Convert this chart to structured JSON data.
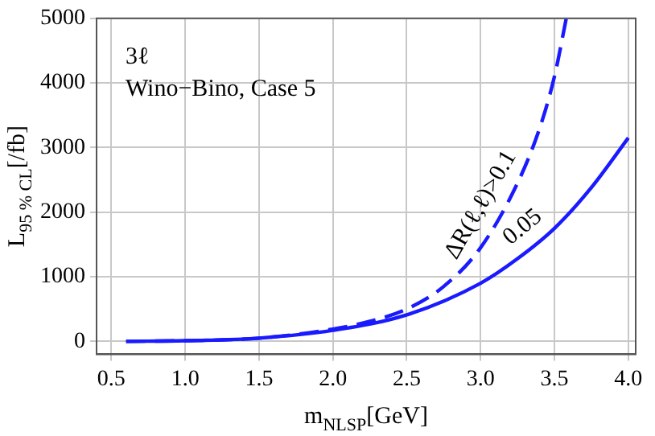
{
  "chart_data": {
    "type": "line",
    "xlabel": "m$_{NLSP}$[GeV]",
    "ylabel": "L$_{95 % CL}$[/fb]",
    "annotations": [
      "3ℓ",
      "Wino−Bino, Case 5"
    ],
    "xlim": [
      0.4,
      4.05
    ],
    "xticks": [
      {
        "value": 0.5,
        "label": "0.5"
      },
      {
        "value": 1,
        "label": "1.0"
      },
      {
        "value": 1.5,
        "label": "1.5"
      },
      {
        "value": 2,
        "label": "2.0"
      },
      {
        "value": 2.5,
        "label": "2.5"
      },
      {
        "value": 3,
        "label": "3.0"
      },
      {
        "value": 3.5,
        "label": "3.5"
      },
      {
        "value": 4,
        "label": "4.0"
      }
    ],
    "ylim": [
      -200,
      5000
    ],
    "yticks": [
      0,
      1000,
      2000,
      3000,
      4000,
      5000
    ],
    "grid": true,
    "legend": false,
    "marker": "none",
    "series": [
      {
        "name": "ΔR(ℓ,ℓ)>0.1",
        "color": "#1a1aff",
        "line_style": "dashed",
        "x": [
          0.6,
          1.0,
          1.5,
          2.0,
          2.25,
          2.5,
          2.75,
          3.0,
          3.25,
          3.4,
          3.5,
          3.58
        ],
        "values": [
          0,
          10,
          50,
          190,
          310,
          500,
          850,
          1450,
          2450,
          3300,
          4100,
          5000
        ]
      },
      {
        "name": "0.05",
        "color": "#1a1aff",
        "line_style": "solid",
        "x": [
          0.6,
          1.0,
          1.5,
          2.0,
          2.5,
          3.0,
          3.25,
          3.5,
          3.75,
          4.0
        ],
        "values": [
          0,
          10,
          50,
          170,
          410,
          900,
          1280,
          1750,
          2380,
          3150
        ]
      }
    ]
  }
}
